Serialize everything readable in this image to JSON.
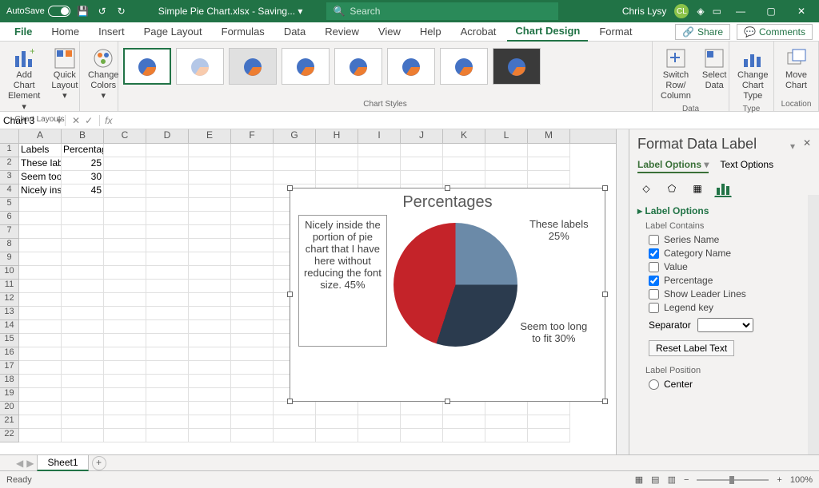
{
  "titlebar": {
    "autosave": "AutoSave",
    "filename": "Simple Pie Chart.xlsx - Saving... ▾",
    "search_placeholder": "Search",
    "username": "Chris Lysy",
    "user_initials": "CL"
  },
  "menu": {
    "tabs": [
      "File",
      "Home",
      "Insert",
      "Page Layout",
      "Formulas",
      "Data",
      "Review",
      "View",
      "Help",
      "Acrobat",
      "Chart Design",
      "Format"
    ],
    "active": "Chart Design",
    "share": "Share",
    "comments": "Comments"
  },
  "ribbon": {
    "layouts_group": "Chart Layouts",
    "add_element": "Add Chart Element ▾",
    "quick_layout": "Quick Layout ▾",
    "change_colors": "Change Colors ▾",
    "styles_group": "Chart Styles",
    "switch": "Switch Row/ Column",
    "select_data": "Select Data",
    "data_group": "Data",
    "change_type": "Change Chart Type",
    "type_group": "Type",
    "move_chart": "Move Chart",
    "location_group": "Location"
  },
  "namebox": "Chart 3",
  "sheet": {
    "columns": [
      "A",
      "B",
      "C",
      "D",
      "E",
      "F",
      "G",
      "H",
      "I",
      "J",
      "K",
      "L",
      "M"
    ],
    "row_count": 22,
    "data": {
      "A1": "Labels",
      "B1": "Percentages",
      "A2": "These labe",
      "B2": "25",
      "A3": "Seem too l",
      "B3": "30",
      "A4": "Nicely insi",
      "B4": "45"
    }
  },
  "chart": {
    "title": "Percentages",
    "type": "pie",
    "slices": [
      {
        "label": "These labels",
        "pct": 25,
        "color": "#6b8aa8",
        "display": "These labels 25%"
      },
      {
        "label": "Seem too long to fit",
        "pct": 30,
        "color": "#2b3b4e",
        "display": "Seem too long to fit 30%"
      },
      {
        "label": "Nicely inside the portion of pie chart that I have here without reducing the font size.",
        "pct": 45,
        "color": "#c42329",
        "display": "Nicely inside the portion of pie chart that I have here without reducing the font size. 45%"
      }
    ],
    "title_fontsize": 20,
    "title_color": "#5a5a5a",
    "label_fontsize": 13,
    "label_color": "#444444",
    "background_color": "#ffffff"
  },
  "panel": {
    "title": "Format Data Label",
    "tab_label_options": "Label Options",
    "tab_text_options": "Text Options",
    "section": "Label Options",
    "contains": "Label Contains",
    "series_name": "Series Name",
    "category_name": "Category Name",
    "value": "Value",
    "percentage": "Percentage",
    "leader": "Show Leader Lines",
    "legend_key": "Legend key",
    "separator": "Separator",
    "reset": "Reset Label Text",
    "position": "Label Position",
    "center": "Center",
    "checked": {
      "category_name": true,
      "percentage": true
    }
  },
  "sheet_tabs": {
    "active": "Sheet1"
  },
  "status": {
    "ready": "Ready",
    "zoom": "100%"
  }
}
